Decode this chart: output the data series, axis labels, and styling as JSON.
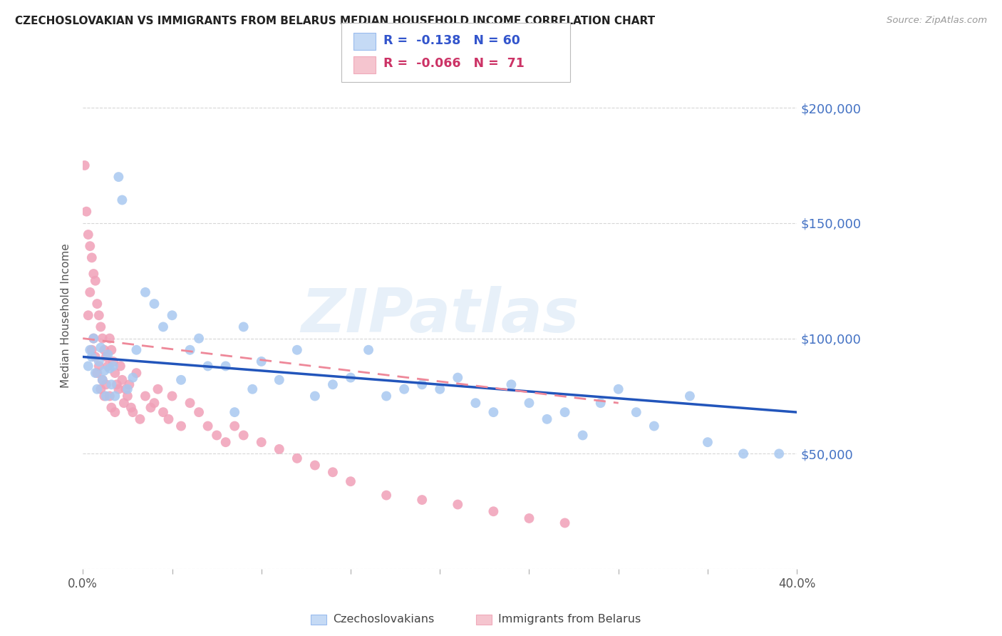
{
  "title": "CZECHOSLOVAKIAN VS IMMIGRANTS FROM BELARUS MEDIAN HOUSEHOLD INCOME CORRELATION CHART",
  "source": "Source: ZipAtlas.com",
  "ylabel": "Median Household Income",
  "xmin": 0.0,
  "xmax": 0.4,
  "ymin": 0,
  "ymax": 220000,
  "yticks": [
    0,
    50000,
    100000,
    150000,
    200000
  ],
  "xticks": [
    0.0,
    0.05,
    0.1,
    0.15,
    0.2,
    0.25,
    0.3,
    0.35,
    0.4
  ],
  "blue_color": "#A8C8F0",
  "pink_color": "#F0A0B8",
  "blue_line_color": "#2255BB",
  "pink_line_color": "#EE8899",
  "watermark_text": "ZIPatlas",
  "blue_scatter_x": [
    0.003,
    0.004,
    0.005,
    0.006,
    0.007,
    0.008,
    0.009,
    0.01,
    0.011,
    0.012,
    0.013,
    0.014,
    0.015,
    0.016,
    0.017,
    0.018,
    0.02,
    0.022,
    0.025,
    0.028,
    0.03,
    0.035,
    0.04,
    0.045,
    0.05,
    0.055,
    0.06,
    0.065,
    0.07,
    0.08,
    0.085,
    0.09,
    0.095,
    0.1,
    0.11,
    0.12,
    0.13,
    0.14,
    0.15,
    0.16,
    0.17,
    0.18,
    0.19,
    0.2,
    0.21,
    0.22,
    0.23,
    0.24,
    0.25,
    0.26,
    0.27,
    0.28,
    0.29,
    0.3,
    0.31,
    0.32,
    0.34,
    0.35,
    0.37,
    0.39
  ],
  "blue_scatter_y": [
    88000,
    95000,
    92000,
    100000,
    85000,
    78000,
    90000,
    96000,
    82000,
    86000,
    75000,
    93000,
    87000,
    80000,
    88000,
    75000,
    170000,
    160000,
    78000,
    83000,
    95000,
    120000,
    115000,
    105000,
    110000,
    82000,
    95000,
    100000,
    88000,
    88000,
    68000,
    105000,
    78000,
    90000,
    82000,
    95000,
    75000,
    80000,
    83000,
    95000,
    75000,
    78000,
    80000,
    78000,
    83000,
    72000,
    68000,
    80000,
    72000,
    65000,
    68000,
    58000,
    72000,
    78000,
    68000,
    62000,
    75000,
    55000,
    50000,
    50000
  ],
  "pink_scatter_x": [
    0.001,
    0.002,
    0.003,
    0.003,
    0.004,
    0.004,
    0.005,
    0.005,
    0.006,
    0.006,
    0.007,
    0.007,
    0.008,
    0.008,
    0.009,
    0.009,
    0.01,
    0.01,
    0.011,
    0.011,
    0.012,
    0.012,
    0.013,
    0.013,
    0.014,
    0.015,
    0.015,
    0.016,
    0.016,
    0.017,
    0.018,
    0.018,
    0.019,
    0.02,
    0.021,
    0.022,
    0.023,
    0.024,
    0.025,
    0.026,
    0.027,
    0.028,
    0.03,
    0.032,
    0.035,
    0.038,
    0.04,
    0.042,
    0.045,
    0.048,
    0.05,
    0.055,
    0.06,
    0.065,
    0.07,
    0.075,
    0.08,
    0.085,
    0.09,
    0.1,
    0.11,
    0.12,
    0.13,
    0.14,
    0.15,
    0.17,
    0.19,
    0.21,
    0.23,
    0.25,
    0.27
  ],
  "pink_scatter_y": [
    175000,
    155000,
    145000,
    110000,
    140000,
    120000,
    135000,
    95000,
    128000,
    100000,
    125000,
    92000,
    115000,
    85000,
    110000,
    88000,
    105000,
    78000,
    100000,
    82000,
    95000,
    75000,
    92000,
    80000,
    88000,
    100000,
    75000,
    95000,
    70000,
    90000,
    85000,
    68000,
    80000,
    78000,
    88000,
    82000,
    72000,
    78000,
    75000,
    80000,
    70000,
    68000,
    85000,
    65000,
    75000,
    70000,
    72000,
    78000,
    68000,
    65000,
    75000,
    62000,
    72000,
    68000,
    62000,
    58000,
    55000,
    62000,
    58000,
    55000,
    52000,
    48000,
    45000,
    42000,
    38000,
    32000,
    30000,
    28000,
    25000,
    22000,
    20000
  ],
  "blue_trendline_x": [
    0.0,
    0.4
  ],
  "blue_trendline_y": [
    92000,
    68000
  ],
  "pink_trendline_x": [
    0.0,
    0.3
  ],
  "pink_trendline_y": [
    100000,
    72000
  ]
}
